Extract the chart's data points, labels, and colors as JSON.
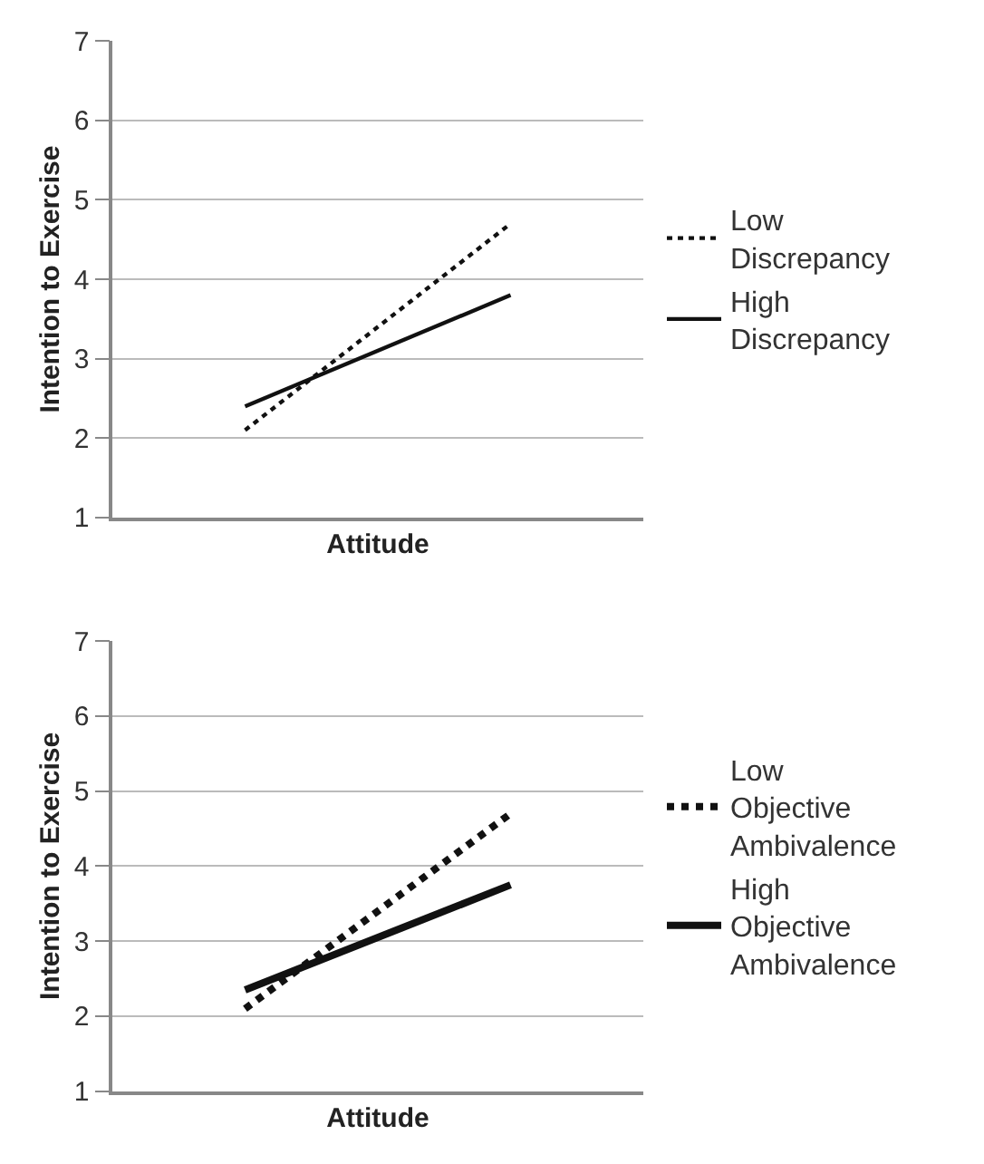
{
  "chart_data": [
    {
      "type": "line",
      "xlabel": "Attitude",
      "ylabel": "Intention to Exercise",
      "categories": [
        null,
        null
      ],
      "ylim": [
        1,
        7
      ],
      "yticks": [
        1,
        2,
        3,
        4,
        5,
        6,
        7
      ],
      "grid": "y",
      "legend": "right",
      "series": [
        {
          "name": "Low Discrepancy",
          "color": "#111111",
          "line_style": "dotted",
          "values": [
            2.1,
            4.7
          ]
        },
        {
          "name": "High Discrepancy",
          "color": "#111111",
          "line_style": "solid",
          "values": [
            2.4,
            3.8
          ]
        }
      ]
    },
    {
      "type": "line",
      "xlabel": "Attitude",
      "ylabel": "Intention to Exercise",
      "categories": [
        null,
        null
      ],
      "ylim": [
        1,
        7
      ],
      "yticks": [
        1,
        2,
        3,
        4,
        5,
        6,
        7
      ],
      "grid": "y",
      "legend": "right",
      "series": [
        {
          "name": "Low Objective Ambivalence",
          "color": "#111111",
          "line_style": "dotted",
          "values": [
            2.1,
            4.7
          ]
        },
        {
          "name": "High Objective Ambivalence",
          "color": "#111111",
          "line_style": "solid",
          "values": [
            2.35,
            3.75
          ]
        }
      ]
    }
  ]
}
